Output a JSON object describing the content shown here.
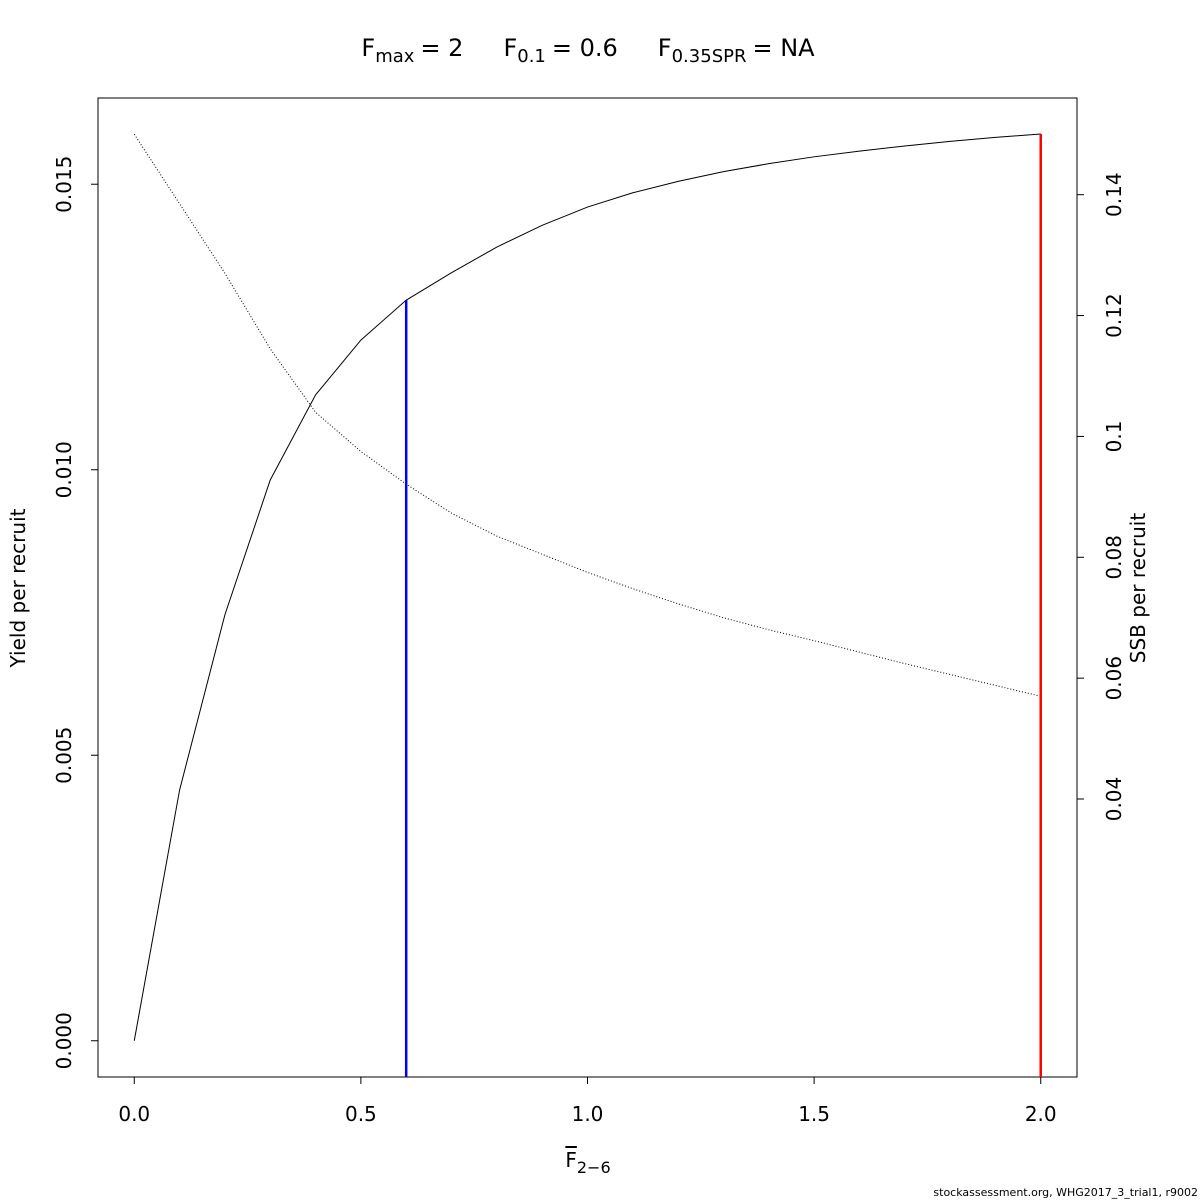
{
  "chart_data": {
    "type": "line",
    "title_parts": [
      {
        "symbol": "F",
        "sub": "max",
        "rest": "= 2"
      },
      {
        "symbol": "F",
        "sub": "0.1",
        "rest": "= 0.6"
      },
      {
        "symbol": "F",
        "sub": "0.35SPR",
        "rest": "= NA"
      }
    ],
    "xlabel": {
      "symbol": "F",
      "sub": "2−6"
    },
    "ylabel": "Yield per recruit",
    "y2label": "SSB per recruit",
    "footer": "stockassessment.org, WHG2017_3_trial1, r9002",
    "x": [
      0,
      0.1,
      0.2,
      0.3,
      0.4,
      0.5,
      0.6,
      0.7,
      0.8,
      0.9,
      1.0,
      1.1,
      1.2,
      1.3,
      1.4,
      1.5,
      1.6,
      1.7,
      1.8,
      1.9,
      2.0
    ],
    "series": [
      {
        "color": "#000000",
        "line_style": "solid",
        "values": [
          0,
          0.00439,
          0.00746,
          0.00982,
          0.01131,
          0.01227,
          0.01297,
          0.01345,
          0.0139,
          0.01428,
          0.0146,
          0.01485,
          0.01505,
          0.01522,
          0.01536,
          0.01548,
          0.01558,
          0.01567,
          0.01575,
          0.01582,
          0.01588
        ]
      },
      {
        "color": "#000000",
        "line_style": "dotted",
        "axis": "y2",
        "values": [
          0.15,
          0.1385,
          0.127,
          0.1145,
          0.104,
          0.0975,
          0.0921,
          0.0873,
          0.0835,
          0.0805,
          0.0775,
          0.0748,
          0.0723,
          0.07,
          0.068,
          0.0662,
          0.0643,
          0.0624,
          0.0606,
          0.0588,
          0.057
        ]
      }
    ],
    "ref_lines": [
      {
        "x": 0.6,
        "color": "#0000ff"
      },
      {
        "x": 2,
        "color": "#ff0000"
      }
    ],
    "xlim": [
      -0.08,
      2.08
    ],
    "xticks": [
      {
        "value": 0,
        "label": "0.0"
      },
      0.5,
      {
        "value": 1,
        "label": "1.0"
      },
      1.5,
      {
        "value": 2,
        "label": "2.0"
      }
    ],
    "ylim": [
      -0.000635,
      0.01651
    ],
    "yticks": [
      {
        "value": 0,
        "label": "0.000"
      },
      {
        "value": 0.005,
        "label": "0.005"
      },
      {
        "value": 0.01,
        "label": "0.010"
      },
      {
        "value": 0.015,
        "label": "0.015"
      }
    ],
    "y2lim": [
      -0.006,
      0.156
    ],
    "y2ticks": [
      0.04,
      0.06,
      0.08,
      0.1,
      0.12,
      0.14
    ]
  }
}
